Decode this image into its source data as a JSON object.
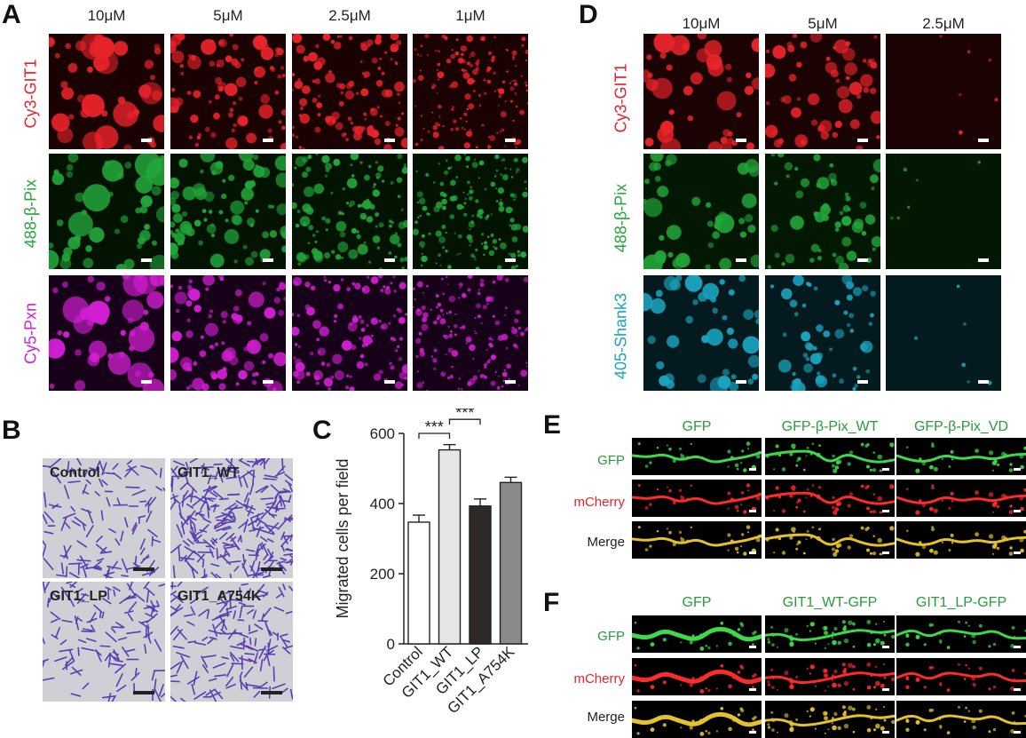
{
  "panel_a": {
    "label": "A",
    "columns": [
      "10μM",
      "5μM",
      "2.5μM",
      "1μM"
    ],
    "rows": [
      {
        "label": "Cy3-GIT1",
        "color": "#e8232a"
      },
      {
        "label": "488-β-Pix",
        "color": "#22a63a"
      },
      {
        "label": "Cy5-Pxn",
        "color": "#d21ed2"
      }
    ]
  },
  "panel_d": {
    "label": "D",
    "columns": [
      "10μM",
      "5μM",
      "2.5μM"
    ],
    "rows": [
      {
        "label": "Cy3-GIT1",
        "color": "#e8232a"
      },
      {
        "label": "488-β-Pix",
        "color": "#22a63a"
      },
      {
        "label": "405-Shank3",
        "color": "#1aa4bf"
      }
    ]
  },
  "panel_b": {
    "label": "B",
    "images": [
      "Control",
      "GIT1_WT",
      "GIT1_LP",
      "GIT1_A754K"
    ]
  },
  "panel_c": {
    "label": "C",
    "significance": [
      "***",
      "***",
      "**"
    ]
  },
  "chart_data": {
    "type": "bar",
    "categories": [
      "Control",
      "GIT1_WT",
      "GIT1_LP",
      "GIT1_A754K"
    ],
    "values": [
      347,
      553,
      393,
      460
    ],
    "errors": [
      20,
      15,
      20,
      15
    ],
    "ylabel": "Migrated cells per field",
    "xlabel": "",
    "ylim": [
      0,
      600
    ],
    "yticks": [
      "0",
      "200",
      "400",
      "600"
    ],
    "bar_colors": [
      "#ffffff",
      "#e6e6e6",
      "#2e2826",
      "#8a8a8a"
    ]
  },
  "panel_e": {
    "label": "E",
    "columns": [
      "GFP",
      "GFP-β-Pix_WT",
      "GFP-β-Pix_VD"
    ],
    "rows": [
      "GFP",
      "mCherry",
      "Merge"
    ]
  },
  "panel_f": {
    "label": "F",
    "columns": [
      "GFP",
      "GIT1_WT-GFP",
      "GIT1_LP-GFP"
    ],
    "rows": [
      "GFP",
      "mCherry",
      "Merge"
    ]
  }
}
